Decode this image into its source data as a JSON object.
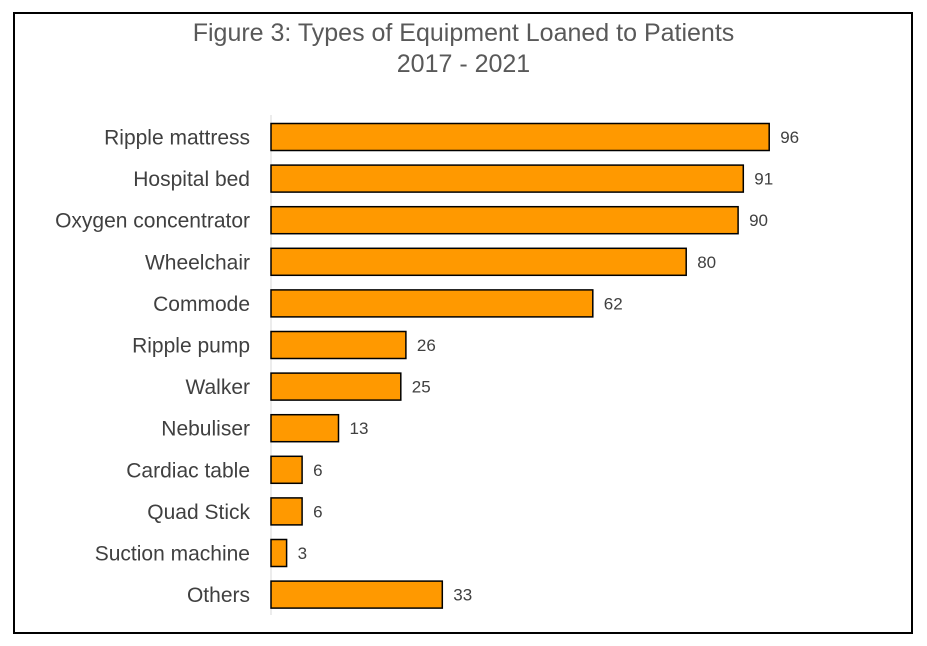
{
  "chart_data": {
    "type": "bar",
    "orientation": "horizontal",
    "title": "Figure 3: Types of Equipment Loaned to Patients",
    "subtitle": "2017 - 2021",
    "categories": [
      "Ripple mattress",
      "Hospital bed",
      "Oxygen concentrator",
      "Wheelchair",
      "Commode",
      "Ripple pump",
      "Walker",
      "Nebuliser",
      "Cardiac table",
      "Quad Stick",
      "Suction machine",
      "Others"
    ],
    "values": [
      96,
      91,
      90,
      80,
      62,
      26,
      25,
      13,
      6,
      6,
      3,
      33
    ],
    "xlim": [
      0,
      100
    ],
    "grid": false,
    "legend": "none",
    "data_labels": true,
    "bar_color": "#FF9900",
    "bar_edge_color": "#000000",
    "axis_color": "#D9D9D9"
  }
}
